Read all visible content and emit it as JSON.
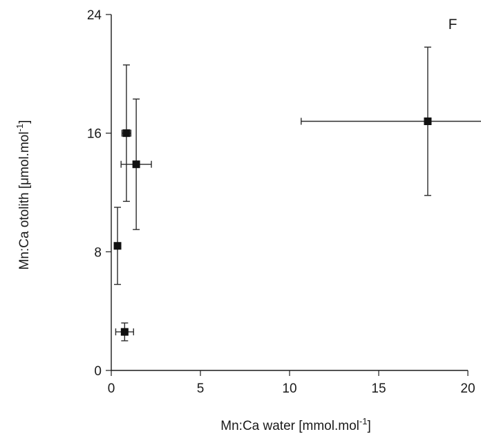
{
  "chart_data": {
    "type": "scatter",
    "panel_label": "F",
    "xlabel_main": "Mn:Ca water [mmol.mol",
    "xlabel_sup": "-1",
    "xlabel_end": "]",
    "ylabel_main": "Mn:Ca otolith [",
    "ylabel_mu": "μ",
    "ylabel_unit": "mol.mol",
    "ylabel_sup": "-1",
    "ylabel_end": "]",
    "xlim": [
      0,
      20
    ],
    "ylim": [
      0,
      24
    ],
    "x_ticks": [
      {
        "value": 0,
        "label": "0"
      },
      {
        "value": 5,
        "label": "5"
      },
      {
        "value": 10,
        "label": "10"
      },
      {
        "value": 15,
        "label": "15"
      },
      {
        "value": 20,
        "label": "20"
      }
    ],
    "y_ticks": [
      {
        "value": 0,
        "label": "0"
      },
      {
        "value": 8,
        "label": "8"
      },
      {
        "value": 16,
        "label": "16"
      },
      {
        "value": 24,
        "label": "24"
      }
    ],
    "grid": false,
    "marker": "square",
    "marker_color": "#111111",
    "points": [
      {
        "x": 0.35,
        "y": 8.4,
        "x_err": 0,
        "y_err": 2.6
      },
      {
        "x": 0.75,
        "y": 2.6,
        "x_err": 0.5,
        "y_err": 0.6
      },
      {
        "x": 0.85,
        "y": 16.0,
        "x_err": 0.25,
        "y_err": 4.6
      },
      {
        "x": 1.4,
        "y": 13.9,
        "x_err": 0.85,
        "y_err": 4.4
      },
      {
        "x": 17.75,
        "y": 16.8,
        "x_err": 7.1,
        "y_err": 5.0
      }
    ]
  }
}
